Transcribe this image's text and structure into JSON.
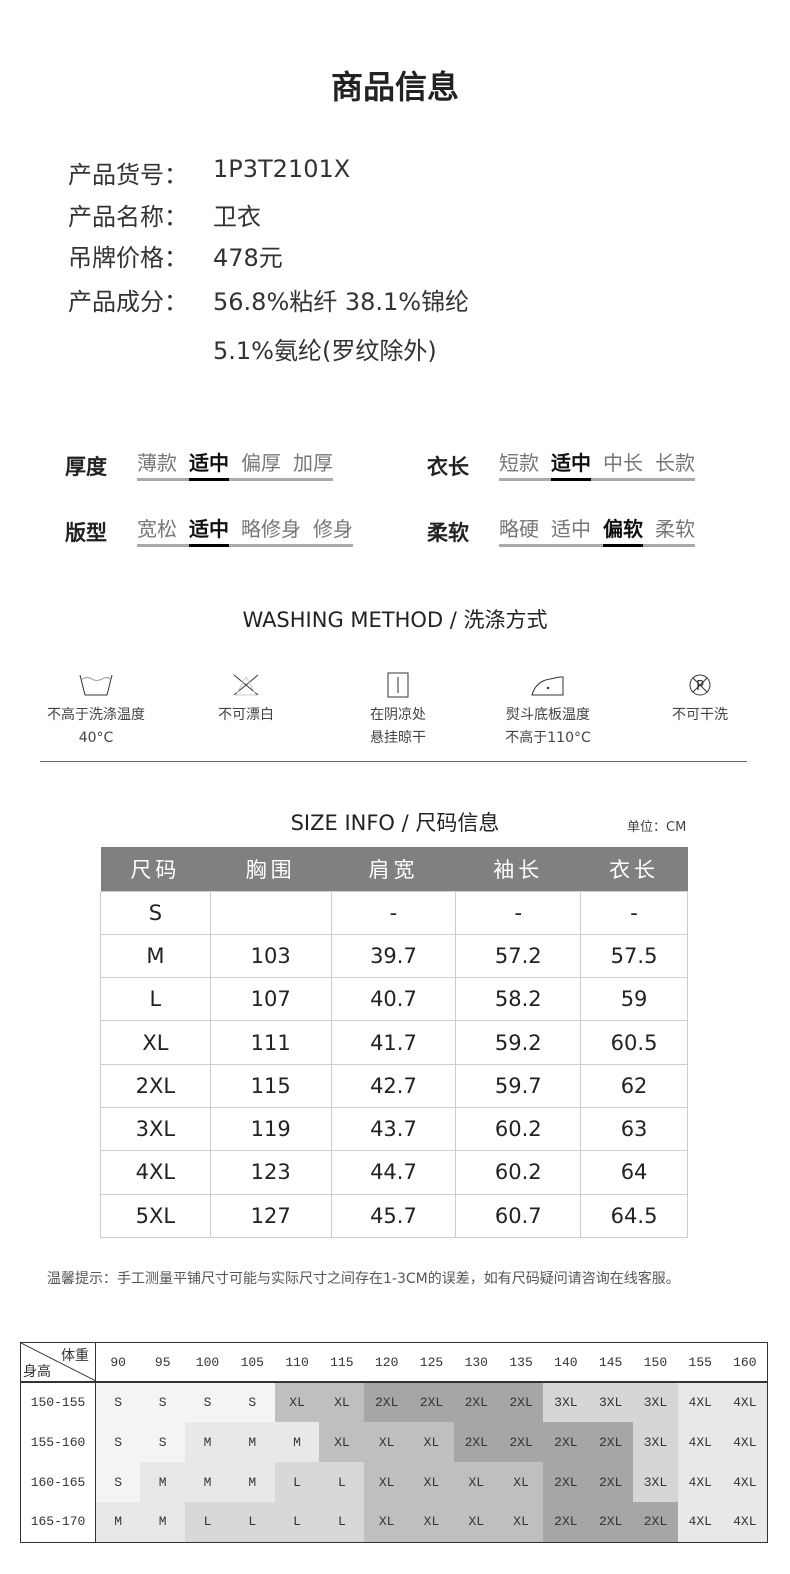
{
  "title": "商品信息",
  "info": [
    {
      "k": "产品货号：",
      "v": "1P3T2101X"
    },
    {
      "k": "产品名称：",
      "v": "卫衣"
    },
    {
      "k": "吊牌价格：",
      "v": "478元"
    },
    {
      "k": "产品成分：",
      "v": "56.8%粘纤 38.1%锦纶"
    },
    {
      "k": "",
      "v": "5.1%氨纶(罗纹除外)"
    }
  ],
  "attributes": [
    {
      "label": "厚度",
      "options": [
        "薄款",
        "适中",
        "偏厚",
        "加厚"
      ],
      "selected": 1
    },
    {
      "label": "衣长",
      "options": [
        "短款",
        "适中",
        "中长",
        "长款"
      ],
      "selected": 1
    },
    {
      "label": "版型",
      "options": [
        "宽松",
        "适中",
        "略修身",
        "修身"
      ],
      "selected": 1
    },
    {
      "label": "柔软",
      "options": [
        "略硬",
        "适中",
        "偏软",
        "柔软"
      ],
      "selected": 2
    }
  ],
  "washing": {
    "title": "WASHING METHOD / 洗涤方式",
    "items": [
      {
        "icon": "wash-tub-icon",
        "l1": "不高于洗涤温度",
        "l2": "40°C"
      },
      {
        "icon": "no-bleach-icon",
        "l1": "不可漂白",
        "l2": ""
      },
      {
        "icon": "hang-dry-shade-icon",
        "l1": "在阴凉处",
        "l2": "悬挂晾干"
      },
      {
        "icon": "iron-icon",
        "l1": "熨斗底板温度",
        "l2": "不高于110°C"
      },
      {
        "icon": "no-dry-clean-icon",
        "l1": "不可干洗",
        "l2": ""
      }
    ]
  },
  "size": {
    "title": "SIZE INFO / 尺码信息",
    "unit": "单位：CM",
    "headers": [
      "尺码",
      "胸围",
      "肩宽",
      "袖长",
      "衣长"
    ],
    "rows": [
      [
        "S",
        "",
        "-",
        "-",
        "-"
      ],
      [
        "M",
        "103",
        "39.7",
        "57.2",
        "57.5"
      ],
      [
        "L",
        "107",
        "40.7",
        "58.2",
        "59"
      ],
      [
        "XL",
        "111",
        "41.7",
        "59.2",
        "60.5"
      ],
      [
        "2XL",
        "115",
        "42.7",
        "59.7",
        "62"
      ],
      [
        "3XL",
        "119",
        "43.7",
        "60.2",
        "63"
      ],
      [
        "4XL",
        "123",
        "44.7",
        "60.2",
        "64"
      ],
      [
        "5XL",
        "127",
        "45.7",
        "60.7",
        "64.5"
      ]
    ]
  },
  "note": "温馨提示：手工测量平铺尺寸可能与实际尺寸之间存在1-3CM的误差，如有尺码疑问请咨询在线客服。",
  "rec": {
    "corner_top": "体重",
    "corner_bottom": "身高",
    "weights": [
      "90",
      "95",
      "100",
      "105",
      "110",
      "115",
      "120",
      "125",
      "130",
      "135",
      "140",
      "145",
      "150",
      "155",
      "160"
    ],
    "rows": [
      {
        "h": "150-155",
        "s": [
          "S",
          "S",
          "S",
          "S",
          "XL",
          "XL",
          "2XL",
          "2XL",
          "2XL",
          "2XL",
          "3XL",
          "3XL",
          "3XL",
          "4XL",
          "4XL"
        ]
      },
      {
        "h": "155-160",
        "s": [
          "S",
          "S",
          "M",
          "M",
          "M",
          "XL",
          "XL",
          "XL",
          "2XL",
          "2XL",
          "2XL",
          "2XL",
          "3XL",
          "4XL",
          "4XL"
        ]
      },
      {
        "h": "160-165",
        "s": [
          "S",
          "M",
          "M",
          "M",
          "L",
          "L",
          "XL",
          "XL",
          "XL",
          "XL",
          "2XL",
          "2XL",
          "3XL",
          "4XL",
          "4XL"
        ]
      },
      {
        "h": "165-170",
        "s": [
          "M",
          "M",
          "L",
          "L",
          "L",
          "L",
          "XL",
          "XL",
          "XL",
          "XL",
          "2XL",
          "2XL",
          "2XL",
          "4XL",
          "4XL"
        ]
      }
    ],
    "shades": {
      "S": "#f4f4f4",
      "M": "#e8e8e8",
      "L": "#d8d8d8",
      "XL": "#bfbfbf",
      "2XL": "#a6a6a6",
      "3XL": "#d6d6d6",
      "4XL": "#e8e8e8"
    }
  }
}
